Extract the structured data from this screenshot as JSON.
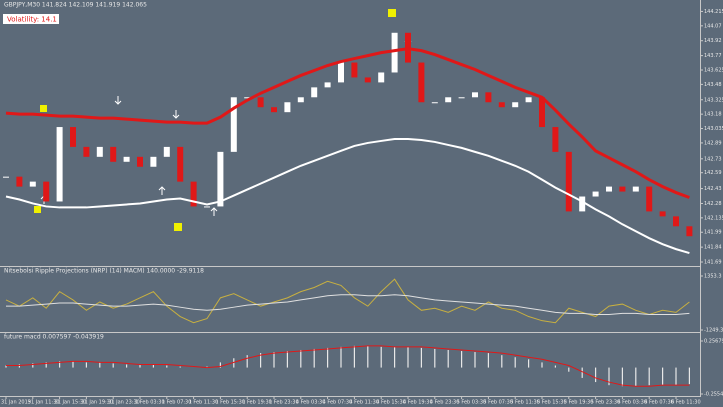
{
  "chart_data": [
    {
      "type": "candlestick",
      "title": "GBPJPY,M30 141.824 142.109 141.919 142.065",
      "annotation": "Volatility: 14.1",
      "categories": [
        "31 Jan 2019",
        null,
        "31 Jan 11:30",
        null,
        "31 Jan 15:30",
        null,
        "31 Jan 19:30",
        null,
        "31 Jan 23:30",
        null,
        "1 Feb 03:30",
        null,
        "1 Feb 07:30",
        null,
        "1 Feb 11:30",
        null,
        "1 Feb 15:30",
        null,
        "1 Feb 19:30",
        null,
        "1 Feb 23:30",
        null,
        "4 Feb 03:30",
        null,
        "4 Feb 07:30",
        null,
        "4 Feb 11:30",
        null,
        "4 Feb 15:30",
        null,
        "4 Feb 19:30",
        null,
        "4 Feb 23:30",
        null,
        "5 Feb 03:30",
        null,
        "5 Feb 07:30",
        null,
        "5 Feb 11:30",
        null,
        "5 Feb 15:30",
        null,
        "5 Feb 19:30",
        null,
        "5 Feb 23:30",
        null,
        "6 Feb 03:30",
        null,
        "6 Feb 07:30",
        null,
        "6 Feb 11:30",
        null
      ],
      "series": [
        {
          "color": "#ffffff",
          "down_color": "#e01818",
          "values": [
            142.55,
            142.45,
            142.5,
            142.3,
            143.05,
            142.85,
            142.75,
            142.85,
            142.7,
            142.75,
            142.65,
            142.75,
            142.85,
            142.5,
            142.25,
            142.25,
            142.8,
            143.35,
            143.35,
            143.25,
            143.2,
            143.3,
            143.35,
            143.45,
            143.5,
            143.7,
            143.55,
            143.5,
            143.6,
            144.0,
            143.7,
            143.3,
            143.3,
            143.35,
            143.35,
            143.4,
            143.3,
            143.25,
            143.3,
            143.35,
            143.05,
            142.8,
            142.2,
            142.35,
            142.4,
            142.45,
            142.4,
            142.45,
            142.2,
            142.15,
            142.05,
            141.95
          ]
        },
        {
          "color": "#e01818",
          "values": [
            143.19,
            143.18,
            143.18,
            143.17,
            143.16,
            143.16,
            143.15,
            143.14,
            143.14,
            143.13,
            143.12,
            143.11,
            143.1,
            143.1,
            143.09,
            143.09,
            143.15,
            143.24,
            143.32,
            143.39,
            143.45,
            143.51,
            143.57,
            143.62,
            143.67,
            143.71,
            143.74,
            143.77,
            143.8,
            143.82,
            143.84,
            143.82,
            143.78,
            143.73,
            143.68,
            143.63,
            143.57,
            143.51,
            143.45,
            143.4,
            143.35,
            143.22,
            143.08,
            142.95,
            142.81,
            142.74,
            142.67,
            142.6,
            142.52,
            142.45,
            142.39,
            142.34
          ]
        },
        {
          "color": "#ffffff",
          "values": [
            142.35,
            142.32,
            142.28,
            142.25,
            142.24,
            142.24,
            142.24,
            142.25,
            142.26,
            142.27,
            142.28,
            142.3,
            142.32,
            142.33,
            142.3,
            142.27,
            142.3,
            142.36,
            142.42,
            142.48,
            142.54,
            142.6,
            142.66,
            142.71,
            142.76,
            142.81,
            142.86,
            142.89,
            142.91,
            142.93,
            142.93,
            142.92,
            142.9,
            142.87,
            142.84,
            142.8,
            142.76,
            142.71,
            142.66,
            142.6,
            142.52,
            142.44,
            142.37,
            142.3,
            142.22,
            142.15,
            142.07,
            142.0,
            141.93,
            141.87,
            141.82,
            141.78
          ]
        }
      ],
      "ylim": [
        141.67,
        144.29
      ],
      "yticks": [
        144.215,
        144.07,
        143.92,
        143.77,
        143.625,
        143.48,
        143.325,
        143.18,
        143.035,
        142.89,
        142.73,
        142.59,
        142.43,
        142.28,
        142.135,
        141.99,
        141.84,
        141.69
      ]
    },
    {
      "type": "line",
      "title": "Nitsebolsi Ripple Projections (NRP) (14) MACM) 140.0000 -29.9118",
      "series": [
        {
          "color": "#c8b040",
          "values": [
            200,
            -100,
            300,
            -200,
            600,
            200,
            -300,
            100,
            -200,
            0,
            300,
            600,
            -100,
            -600,
            -900,
            -700,
            300,
            500,
            200,
            -100,
            100,
            300,
            600,
            800,
            1100,
            900,
            300,
            -100,
            600,
            1200,
            200,
            -300,
            -200,
            -400,
            -100,
            -300,
            100,
            -200,
            -300,
            -600,
            -800,
            -900,
            -200,
            -400,
            -600,
            -100,
            0,
            -300,
            -500,
            -300,
            -400,
            100
          ]
        },
        {
          "color": "#e0e0e0",
          "values": [
            -100,
            -100,
            -50,
            0,
            50,
            50,
            0,
            -50,
            -100,
            -100,
            -50,
            0,
            -50,
            -150,
            -250,
            -300,
            -250,
            -150,
            -50,
            0,
            50,
            100,
            200,
            300,
            400,
            450,
            450,
            400,
            400,
            450,
            400,
            300,
            200,
            150,
            100,
            50,
            0,
            -50,
            -100,
            -200,
            -300,
            -400,
            -450,
            -450,
            -500,
            -500,
            -450,
            -450,
            -500,
            -500,
            -500,
            -450
          ]
        }
      ],
      "ylim": [
        -1249.3,
        1353.3
      ],
      "yticks": [
        1353.3,
        -1249.3
      ]
    },
    {
      "type": "macd",
      "title": "future macd 0.007597 -0.043919",
      "series": [
        {
          "type": "bar",
          "color": "#e8e8e8",
          "values": [
            0.02,
            0.03,
            0.04,
            0.05,
            0.06,
            0.06,
            0.05,
            0.05,
            0.04,
            0.03,
            0.03,
            0.03,
            0.02,
            0.01,
            0,
            0.01,
            0.05,
            0.09,
            0.12,
            0.14,
            0.15,
            0.16,
            0.17,
            0.18,
            0.19,
            0.2,
            0.21,
            0.21,
            0.2,
            0.2,
            0.2,
            0.19,
            0.18,
            0.17,
            0.16,
            0.15,
            0.14,
            0.12,
            0.1,
            0.08,
            0.05,
            0.02,
            -0.04,
            -0.1,
            -0.14,
            -0.17,
            -0.18,
            -0.18,
            -0.17,
            -0.17,
            -0.17,
            -0.16
          ]
        },
        {
          "type": "line",
          "color": "#e01818",
          "values": [
            0.02,
            0.02,
            0.03,
            0.04,
            0.05,
            0.06,
            0.06,
            0.05,
            0.05,
            0.04,
            0.03,
            0.03,
            0.03,
            0.02,
            0.01,
            0,
            0.01,
            0.05,
            0.09,
            0.12,
            0.14,
            0.15,
            0.16,
            0.17,
            0.18,
            0.19,
            0.2,
            0.21,
            0.21,
            0.2,
            0.2,
            0.2,
            0.19,
            0.18,
            0.17,
            0.16,
            0.15,
            0.14,
            0.12,
            0.1,
            0.08,
            0.05,
            0.02,
            -0.04,
            -0.1,
            -0.14,
            -0.17,
            -0.18,
            -0.18,
            -0.17,
            -0.17,
            -0.17
          ]
        }
      ],
      "ylim": [
        -0.255409,
        0.256791
      ],
      "yticks": [
        0.256791,
        -0.255409
      ]
    }
  ]
}
